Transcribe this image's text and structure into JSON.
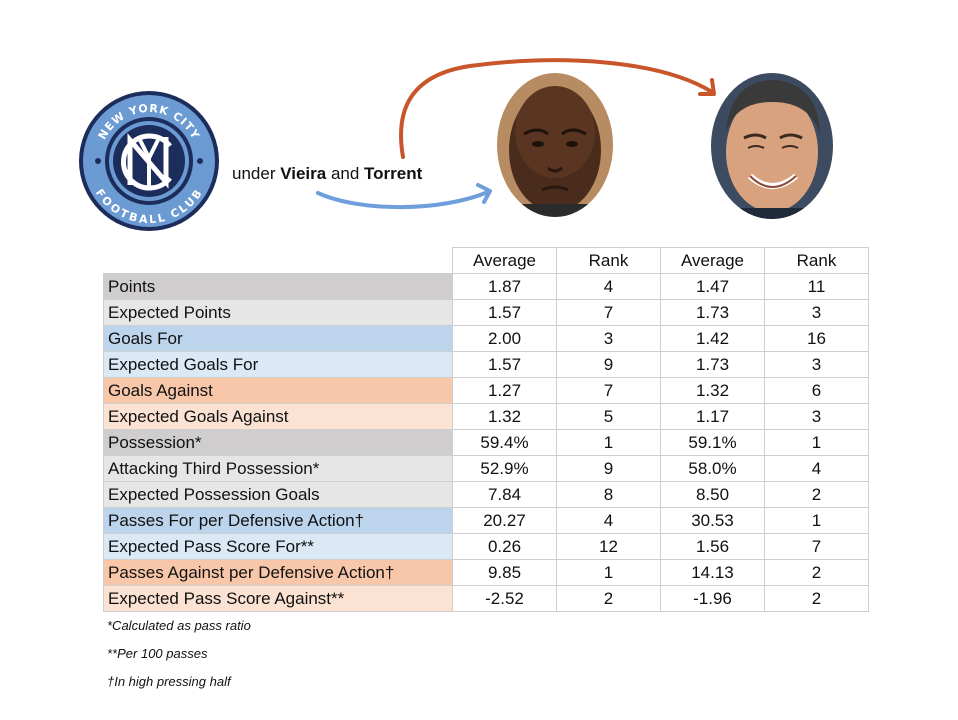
{
  "caption": {
    "prefix": "under ",
    "coach1": "Vieira",
    "mid": " and ",
    "coach2": "Torrent"
  },
  "badge": {
    "top_text": "NEW YORK CITY",
    "bottom_text": "FOOTBALL CLUB",
    "colors": {
      "navy": "#1c2c5b",
      "blue": "#6b9bd2"
    }
  },
  "arrow_colors": {
    "orange": "#c8562a",
    "blue": "#6e9edc"
  },
  "table": {
    "headers": [
      "Average",
      "Rank",
      "Average",
      "Rank"
    ],
    "rows": [
      {
        "label": "Points",
        "v": [
          "1.87",
          "4",
          "1.47",
          "11"
        ],
        "bold": [
          true,
          true,
          false,
          false
        ],
        "style": "gray-d"
      },
      {
        "label": "Expected Points",
        "v": [
          "1.57",
          "7",
          "1.73",
          "3"
        ],
        "bold": [
          false,
          false,
          true,
          true
        ],
        "style": "gray-l"
      },
      {
        "label": "Goals For",
        "v": [
          "2.00",
          "3",
          "1.42",
          "16"
        ],
        "bold": [
          true,
          true,
          false,
          false
        ],
        "style": "blue-d"
      },
      {
        "label": "Expected Goals For",
        "v": [
          "1.57",
          "9",
          "1.73",
          "3"
        ],
        "bold": [
          false,
          false,
          true,
          true
        ],
        "style": "blue-l"
      },
      {
        "label": "Goals Against",
        "v": [
          "1.27",
          "7",
          "1.32",
          "6"
        ],
        "bold": [
          true,
          false,
          false,
          true
        ],
        "style": "org-d"
      },
      {
        "label": "Expected Goals Against",
        "v": [
          "1.32",
          "5",
          "1.17",
          "3"
        ],
        "bold": [
          false,
          false,
          true,
          true
        ],
        "style": "org-l"
      },
      {
        "label": "Possession*",
        "v": [
          "59.4%",
          "1",
          "59.1%",
          "1"
        ],
        "bold": [
          true,
          false,
          false,
          false
        ],
        "style": "gray-d"
      },
      {
        "label": "Attacking Third Possession*",
        "v": [
          "52.9%",
          "9",
          "58.0%",
          "4"
        ],
        "bold": [
          false,
          false,
          true,
          true
        ],
        "style": "gray-l"
      },
      {
        "label": "Expected Possession Goals",
        "v": [
          "7.84",
          "8",
          "8.50",
          "2"
        ],
        "bold": [
          false,
          false,
          true,
          true
        ],
        "style": "gray-l"
      },
      {
        "label": "Passes For per Defensive Action†",
        "v": [
          "20.27",
          "4",
          "30.53",
          "1"
        ],
        "bold": [
          false,
          false,
          true,
          true
        ],
        "style": "blue-d"
      },
      {
        "label": "Expected Pass Score For**",
        "v": [
          "0.26",
          "12",
          "1.56",
          "7"
        ],
        "bold": [
          false,
          false,
          true,
          true
        ],
        "style": "blue-l"
      },
      {
        "label": "Passes Against per Defensive Action†",
        "v": [
          "9.85",
          "1",
          "14.13",
          "2"
        ],
        "bold": [
          true,
          true,
          false,
          false
        ],
        "style": "org-d"
      },
      {
        "label": "Expected Pass Score Against**",
        "v": [
          "-2.52",
          "2",
          "-1.96",
          "2"
        ],
        "bold": [
          true,
          false,
          false,
          false
        ],
        "style": "org-l"
      }
    ]
  },
  "notes": [
    "*Calculated as pass ratio",
    "**Per 100 passes",
    "†In high pressing half"
  ]
}
